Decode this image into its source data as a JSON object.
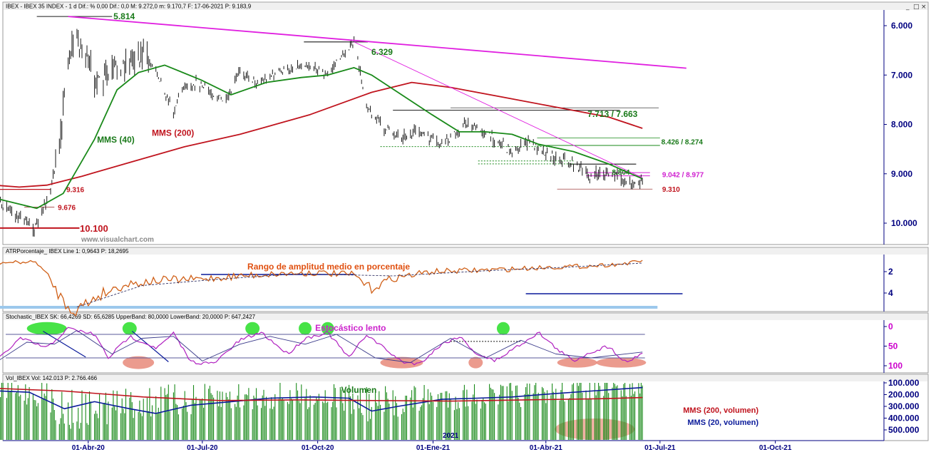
{
  "colors": {
    "price": "#1a1a1a",
    "mms40": "#1a8a1a",
    "mms200": "#c0141e",
    "trend": "#e020e0",
    "atr": "#d06018",
    "stoch_k": "#b020c0",
    "stoch_d": "#3a3a8a",
    "vol_bar": "#1a8a1a",
    "vol_mms20": "#0a1a9a",
    "vol_mms200": "#c0141e",
    "axis_text": "#000080",
    "green_ann": "#1a7a1a",
    "red_ann": "#c0141e",
    "magenta_ann": "#d020d0",
    "orange_ann": "#e05010"
  },
  "panels": {
    "price": {
      "header": "IBEX - IBEX 35 INDEX - 1 d  Dif.: %  0,00  Dif.: 0,0  M: 9.272,0  m: 9.170,7  F: 17-06-2021  P: 9.183,9",
      "window_buttons": [
        "_",
        "□",
        "×"
      ]
    },
    "atr": {
      "header": "ATRPorcentaje_ IBEX  Line 1: 0,9643  P: 18,2695",
      "title": "Rango de amplitud medio en porcentaje"
    },
    "stoch": {
      "header": "Stochastic_IBEX  SK: 66,4269  SD: 65,6285  UpperBand: 80,0000  LowerBand: 20,0000  P: 647,2427",
      "title": "Estocástico lento"
    },
    "volume": {
      "header": "Vol_IBEX  Vol: 142.013  P: 2.766.466",
      "title": "Volumen",
      "marker": "2021"
    }
  },
  "watermark": "www.visualchart.com",
  "chart_data": [
    {
      "type": "line",
      "panel": "price",
      "x_tick_labels": [
        "01-Abr-20",
        "01-Jul-20",
        "01-Oct-20",
        "01-Ene-21",
        "01-Abr-21",
        "01-Jul-21",
        "01-Oct-21"
      ],
      "y_tick_labels": [
        "10.000",
        "9.000",
        "8.000",
        "7.000",
        "6.000"
      ],
      "ylim": [
        5600,
        10350
      ],
      "series": [
        {
          "key": "price",
          "x": [
            "2020-01-02",
            "2020-01-20",
            "2020-02-19",
            "2020-03-03",
            "2020-03-12",
            "2020-03-16",
            "2020-03-23",
            "2020-03-26",
            "2020-04-09",
            "2020-04-28",
            "2020-05-14",
            "2020-05-25",
            "2020-06-08",
            "2020-06-15",
            "2020-06-26",
            "2020-07-20",
            "2020-07-31",
            "2020-08-12",
            "2020-08-31",
            "2020-09-21",
            "2020-10-09",
            "2020-10-20",
            "2020-10-30",
            "2020-11-09",
            "2020-11-23",
            "2020-12-07",
            "2020-12-21",
            "2021-01-08",
            "2021-01-28",
            "2021-02-10",
            "2021-03-05",
            "2021-03-18",
            "2021-04-06",
            "2021-04-20",
            "2021-05-07",
            "2021-05-20",
            "2021-06-07",
            "2021-06-17"
          ],
          "values": [
            9620,
            9590,
            10100,
            9250,
            7700,
            6600,
            6200,
            6450,
            7200,
            6800,
            6550,
            6900,
            7750,
            7250,
            7150,
            7550,
            6900,
            7150,
            6950,
            6750,
            7000,
            6600,
            6330,
            7600,
            8100,
            8250,
            8150,
            8450,
            7950,
            8150,
            8550,
            8350,
            8650,
            8750,
            9050,
            8980,
            9200,
            9184
          ]
        },
        {
          "key": "mms40",
          "x": [
            "2020-01-02",
            "2020-02-20",
            "2020-03-12",
            "2020-04-06",
            "2020-04-24",
            "2020-05-11",
            "2020-06-01",
            "2020-06-30",
            "2020-07-24",
            "2020-08-21",
            "2020-09-18",
            "2020-10-09",
            "2020-10-30",
            "2020-11-13",
            "2020-12-04",
            "2020-12-31",
            "2021-01-22",
            "2021-02-12",
            "2021-03-05",
            "2021-03-26",
            "2021-04-23",
            "2021-05-21",
            "2021-06-17"
          ],
          "values": [
            9400,
            9700,
            9400,
            8300,
            7300,
            6950,
            6800,
            7100,
            7400,
            7150,
            7050,
            7000,
            6850,
            7000,
            7350,
            7800,
            8150,
            8150,
            8200,
            8400,
            8550,
            8800,
            9100
          ]
        },
        {
          "key": "mms200",
          "x": [
            "2020-01-02",
            "2020-02-06",
            "2020-02-28",
            "2020-03-27",
            "2020-05-07",
            "2020-06-17",
            "2020-07-31",
            "2020-09-25",
            "2020-11-13",
            "2020-12-15",
            "2021-01-15",
            "2021-02-26",
            "2021-04-09",
            "2021-05-21",
            "2021-06-17"
          ],
          "values": [
            9200,
            9270,
            9230,
            9050,
            8750,
            8450,
            8200,
            7800,
            7350,
            7150,
            7250,
            7450,
            7650,
            7850,
            8080
          ]
        },
        {
          "key": "trend_lt",
          "x": [
            "2020-03-16",
            "2021-07-22"
          ],
          "values": [
            5814,
            6860
          ]
        },
        {
          "key": "trend_st",
          "x": [
            "2020-10-30",
            "2021-06-17"
          ],
          "values": [
            6329,
            9080
          ]
        }
      ],
      "levels": [
        {
          "label": "10.100",
          "value": 10100
        },
        {
          "label": "9.676",
          "value": 9676
        },
        {
          "label": "9.316",
          "value": 9316
        },
        {
          "label": "9.310",
          "value": 9310
        },
        {
          "label": "9.042 / 8.977",
          "values": [
            9042,
            8977
          ]
        },
        {
          "label": "8.804",
          "value": 8804
        },
        {
          "label": "8.426 / 8.274",
          "values": [
            8426,
            8274
          ]
        },
        {
          "label": "7.713 / 7.663",
          "values": [
            7713,
            7663
          ]
        },
        {
          "label": "6.329",
          "value": 6329
        },
        {
          "label": "5.814",
          "value": 5814
        }
      ],
      "annotations": [
        "MMS (40)",
        "MMS (200)"
      ]
    },
    {
      "type": "line",
      "panel": "atr",
      "title": "Rango de amplitud medio en porcentaje",
      "y_tick_labels": [
        "4",
        "2"
      ],
      "ylim": [
        0.8,
        6.2
      ],
      "series": [
        {
          "key": "atr",
          "x": [
            "2020-01-02",
            "2020-02-20",
            "2020-03-02",
            "2020-03-12",
            "2020-03-23",
            "2020-04-09",
            "2020-04-30",
            "2020-05-29",
            "2020-06-30",
            "2020-07-31",
            "2020-08-31",
            "2020-09-30",
            "2020-10-30",
            "2020-11-12",
            "2020-11-30",
            "2020-12-31",
            "2021-01-29",
            "2021-02-26",
            "2021-03-31",
            "2021-04-30",
            "2021-05-31",
            "2021-06-17"
          ],
          "values": [
            1.2,
            1.1,
            2.8,
            4.8,
            5.6,
            4.2,
            3.2,
            2.8,
            2.7,
            2.4,
            2.2,
            2.1,
            2.3,
            3.6,
            2.6,
            2.0,
            1.9,
            1.8,
            1.6,
            1.5,
            1.3,
            1.0
          ]
        },
        {
          "key": "atr_avg",
          "x": [
            "2020-03-23",
            "2020-05-14",
            "2020-07-15",
            "2020-09-15",
            "2020-11-30",
            "2021-02-15",
            "2021-04-15",
            "2021-06-17"
          ],
          "values": [
            5.3,
            3.3,
            2.7,
            2.2,
            2.4,
            1.9,
            1.6,
            1.2
          ]
        }
      ]
    },
    {
      "type": "line",
      "panel": "stoch",
      "title": "Estocástico lento",
      "y_tick_labels": [
        "100",
        "50",
        "0"
      ],
      "ylim": [
        -8,
        108
      ],
      "bands": [
        80,
        20
      ],
      "series": [
        {
          "key": "stoch_k",
          "x": [
            "2020-01-02",
            "2020-01-17",
            "2020-02-07",
            "2020-02-28",
            "2020-03-16",
            "2020-04-06",
            "2020-04-17",
            "2020-05-04",
            "2020-05-26",
            "2020-06-08",
            "2020-06-22",
            "2020-07-10",
            "2020-07-31",
            "2020-08-17",
            "2020-09-07",
            "2020-09-21",
            "2020-10-09",
            "2020-10-26",
            "2020-11-09",
            "2020-12-07",
            "2020-12-21",
            "2021-01-08",
            "2021-01-22",
            "2021-02-05",
            "2021-02-19",
            "2021-03-12",
            "2021-03-26",
            "2021-04-09",
            "2021-04-23",
            "2021-05-07",
            "2021-05-21",
            "2021-06-04",
            "2021-06-17"
          ],
          "values": [
            55,
            92,
            30,
            55,
            5,
            20,
            80,
            25,
            55,
            18,
            90,
            95,
            35,
            15,
            70,
            30,
            15,
            80,
            20,
            90,
            95,
            45,
            25,
            70,
            88,
            45,
            15,
            55,
            88,
            65,
            50,
            92,
            66
          ]
        },
        {
          "key": "stoch_d",
          "x": [
            "2020-01-02",
            "2020-01-20",
            "2020-02-12",
            "2020-03-05",
            "2020-03-23",
            "2020-04-20",
            "2020-05-14",
            "2020-06-08",
            "2020-07-01",
            "2020-07-31",
            "2020-08-24",
            "2020-09-21",
            "2020-10-16",
            "2020-11-16",
            "2020-12-14",
            "2021-01-15",
            "2021-02-12",
            "2021-03-12",
            "2021-04-09",
            "2021-05-07",
            "2021-06-17"
          ],
          "values": [
            60,
            88,
            40,
            45,
            10,
            70,
            30,
            25,
            88,
            45,
            25,
            45,
            20,
            80,
            92,
            30,
            80,
            35,
            70,
            80,
            65
          ]
        }
      ],
      "annotations": [
        "overbought-zone",
        "oversold-zone"
      ]
    },
    {
      "type": "bar",
      "panel": "volume",
      "title": "Volumen",
      "y_tick_labels": [
        "500.000",
        "400.000",
        "300.000",
        "200.000",
        "100.000"
      ],
      "ylim": [
        0,
        520000
      ],
      "volume_profile": {
        "x": [
          "2020-01-02",
          "2020-02-24",
          "2020-03-16",
          "2020-04-15",
          "2020-05-20",
          "2020-06-30",
          "2020-08-31",
          "2020-10-15",
          "2020-11-13",
          "2020-12-15",
          "2021-01-29",
          "2021-03-15",
          "2021-04-30",
          "2021-06-17"
        ],
        "values": [
          130000,
          200000,
          340000,
          300000,
          260000,
          240000,
          210000,
          210000,
          300000,
          240000,
          210000,
          200000,
          160000,
          150000
        ]
      },
      "series": [
        {
          "key": "vol_mms20",
          "name": "MMS (20, volumen)",
          "x": [
            "2020-01-02",
            "2020-02-14",
            "2020-03-13",
            "2020-04-06",
            "2020-05-04",
            "2020-05-25",
            "2020-06-22",
            "2020-07-24",
            "2020-08-24",
            "2020-09-28",
            "2020-10-26",
            "2020-11-13",
            "2020-12-04",
            "2021-01-08",
            "2021-02-05",
            "2021-03-05",
            "2021-04-09",
            "2021-05-07",
            "2021-06-17"
          ],
          "values": [
            160000,
            180000,
            320000,
            260000,
            320000,
            360000,
            290000,
            260000,
            230000,
            220000,
            230000,
            340000,
            300000,
            240000,
            230000,
            220000,
            190000,
            170000,
            140000
          ]
        },
        {
          "key": "vol_mms200",
          "name": "MMS (200, volumen)",
          "x": [
            "2020-01-02",
            "2020-03-13",
            "2020-05-15",
            "2020-07-15",
            "2020-09-15",
            "2020-11-13",
            "2021-01-15",
            "2021-03-15",
            "2021-05-14",
            "2021-06-17"
          ],
          "values": [
            140000,
            170000,
            220000,
            250000,
            245000,
            250000,
            255000,
            245000,
            235000,
            225000
          ]
        }
      ],
      "legend": [
        "MMS (200, volumen)",
        "MMS (20, volumen)"
      ]
    }
  ]
}
